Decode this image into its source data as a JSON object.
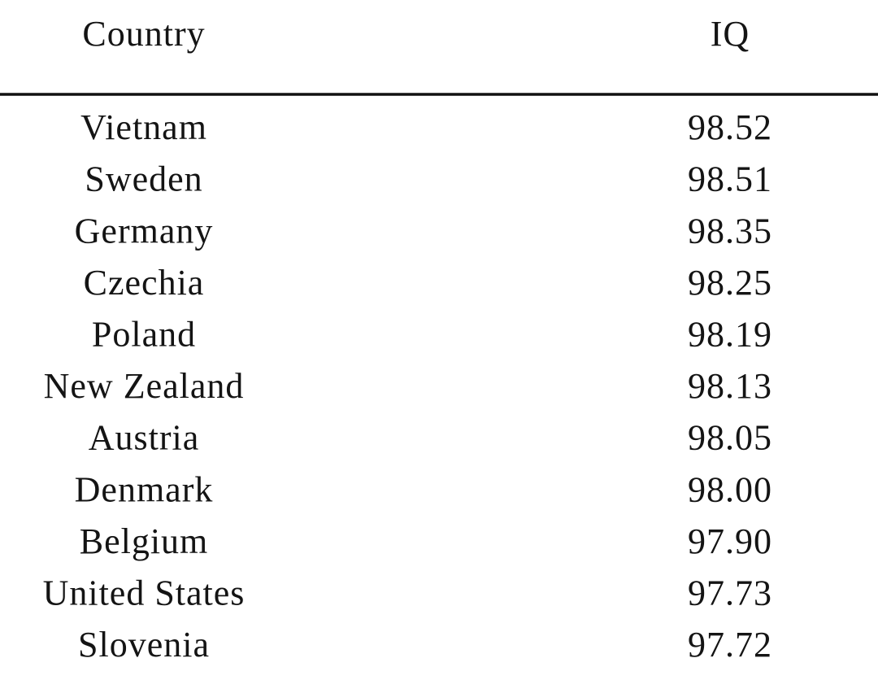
{
  "table": {
    "header": [
      "Country",
      "IQ"
    ],
    "rows": [
      [
        "Vietnam",
        "98.52"
      ],
      [
        "Sweden",
        "98.51"
      ],
      [
        "Germany",
        "98.35"
      ],
      [
        "Czechia",
        "98.25"
      ],
      [
        "Poland",
        "98.19"
      ],
      [
        "New Zealand",
        "98.13"
      ],
      [
        "Austria",
        "98.05"
      ],
      [
        "Denmark",
        "98.00"
      ],
      [
        "Belgium",
        "97.90"
      ],
      [
        "United States",
        "97.73"
      ],
      [
        "Slovenia",
        "97.72"
      ]
    ]
  }
}
